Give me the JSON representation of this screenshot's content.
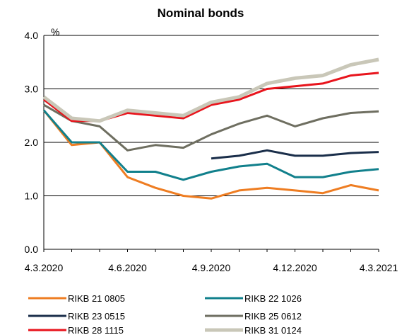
{
  "chart_data": {
    "type": "line",
    "title": "Nominal bonds",
    "ylabel": "%",
    "ylim": [
      0,
      4
    ],
    "yticks": [
      "0.0",
      "1.0",
      "2.0",
      "3.0",
      "4.0"
    ],
    "xticks": [
      "4.3.2020",
      "4.6.2020",
      "4.9.2020",
      "4.12.2020",
      "4.3.2021"
    ],
    "grid": true,
    "legend_position": "bottom",
    "x": [
      "Mar-2020",
      "Apr-2020",
      "May-2020",
      "Jun-2020",
      "Jul-2020",
      "Aug-2020",
      "Sep-2020",
      "Oct-2020",
      "Nov-2020",
      "Dec-2020",
      "Jan-2021",
      "Feb-2021",
      "Mar-2021"
    ],
    "series": [
      {
        "name": "RIKB 21 0805",
        "color": "#ee7d22",
        "values": [
          2.6,
          1.95,
          2.0,
          1.35,
          1.15,
          1.0,
          0.95,
          1.1,
          1.15,
          1.1,
          1.05,
          1.2,
          1.1
        ]
      },
      {
        "name": "RIKB 22 1026",
        "color": "#11808c",
        "values": [
          2.6,
          2.0,
          2.0,
          1.45,
          1.45,
          1.3,
          1.45,
          1.55,
          1.6,
          1.35,
          1.35,
          1.45,
          1.5
        ]
      },
      {
        "name": "RIKB 23 0515",
        "color": "#1a2e4a",
        "values": [
          null,
          null,
          null,
          null,
          null,
          null,
          1.7,
          1.75,
          1.85,
          1.75,
          1.75,
          1.8,
          1.82
        ]
      },
      {
        "name": "RIKB 25 0612",
        "color": "#6e6e60",
        "values": [
          2.7,
          2.4,
          2.3,
          1.85,
          1.95,
          1.9,
          2.15,
          2.35,
          2.5,
          2.3,
          2.45,
          2.55,
          2.58
        ]
      },
      {
        "name": "RIKB 28 1115",
        "color": "#e8141c",
        "values": [
          2.8,
          2.4,
          2.4,
          2.55,
          2.5,
          2.45,
          2.7,
          2.8,
          3.0,
          3.05,
          3.1,
          3.25,
          3.3
        ]
      },
      {
        "name": "RIKB 31 0124",
        "color": "#c9c7b8",
        "values": [
          2.85,
          2.45,
          2.4,
          2.6,
          2.55,
          2.5,
          2.75,
          2.85,
          3.1,
          3.2,
          3.25,
          3.45,
          3.55
        ]
      }
    ]
  }
}
